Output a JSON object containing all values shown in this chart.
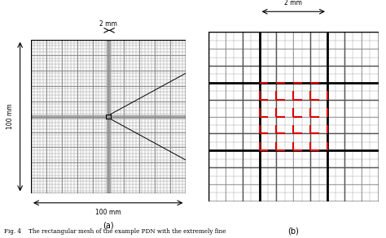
{
  "fig_width": 4.74,
  "fig_height": 2.93,
  "bg_color": "#ffffff",
  "grid_light": "#bbbbbb",
  "grid_medium": "#888888",
  "grid_dark": "#555555",
  "bg_left": "#d8d8d8",
  "bg_right": "#c8c8c8",
  "red_color": "#dd0000",
  "black": "#000000",
  "label_a": "(a)",
  "label_b": "(b)",
  "ann_100mm_x": "100 mm",
  "ann_100mm_y": "100 mm",
  "ann_2mm_a": "2 mm",
  "ann_2mm_b": "2 mm",
  "caption": "Fig. 4    The rectangular mesh of the example PDN with the extremely fine"
}
